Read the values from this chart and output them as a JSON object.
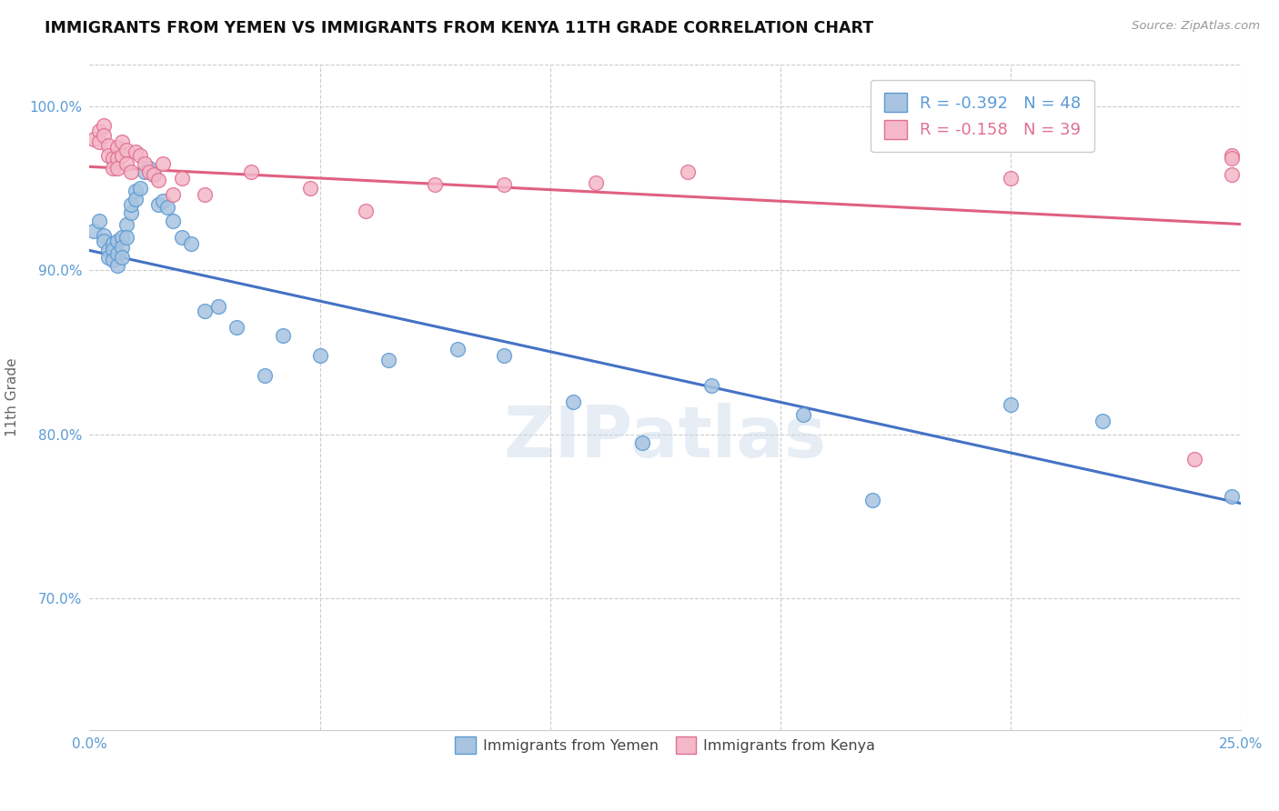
{
  "title": "IMMIGRANTS FROM YEMEN VS IMMIGRANTS FROM KENYA 11TH GRADE CORRELATION CHART",
  "source": "Source: ZipAtlas.com",
  "ylabel": "11th Grade",
  "xlim": [
    0.0,
    0.25
  ],
  "ylim": [
    0.62,
    1.025
  ],
  "yticks": [
    0.7,
    0.8,
    0.9,
    1.0
  ],
  "ytick_labels": [
    "70.0%",
    "80.0%",
    "90.0%",
    "100.0%"
  ],
  "xticks": [
    0.0,
    0.05,
    0.1,
    0.15,
    0.2,
    0.25
  ],
  "xtick_labels_show": [
    "0.0%",
    "",
    "",
    "",
    "",
    "25.0%"
  ],
  "legend_blue_line1": "R = -0.392",
  "legend_blue_line2": "N = 48",
  "legend_pink_line1": "R = -0.158",
  "legend_pink_line2": "N = 39",
  "blue_color": "#a8c4e0",
  "blue_edge_color": "#5b9bd5",
  "pink_color": "#f4b8c8",
  "pink_edge_color": "#e07090",
  "watermark": "ZIPatlas",
  "blue_line_color": "#4472c4",
  "pink_line_color": "#e06080",
  "blue_line_y0": 0.912,
  "blue_line_y1": 0.758,
  "pink_line_y0": 0.963,
  "pink_line_y1": 0.928,
  "blue_x": [
    0.001,
    0.002,
    0.003,
    0.003,
    0.004,
    0.004,
    0.005,
    0.005,
    0.005,
    0.006,
    0.006,
    0.006,
    0.007,
    0.007,
    0.007,
    0.008,
    0.008,
    0.009,
    0.009,
    0.01,
    0.01,
    0.011,
    0.012,
    0.013,
    0.014,
    0.015,
    0.016,
    0.017,
    0.018,
    0.02,
    0.022,
    0.025,
    0.028,
    0.032,
    0.038,
    0.042,
    0.05,
    0.065,
    0.08,
    0.09,
    0.105,
    0.12,
    0.135,
    0.155,
    0.17,
    0.2,
    0.22,
    0.248
  ],
  "blue_y": [
    0.924,
    0.93,
    0.921,
    0.918,
    0.912,
    0.908,
    0.916,
    0.912,
    0.906,
    0.918,
    0.91,
    0.903,
    0.92,
    0.914,
    0.908,
    0.928,
    0.92,
    0.935,
    0.94,
    0.948,
    0.943,
    0.95,
    0.96,
    0.962,
    0.958,
    0.94,
    0.942,
    0.938,
    0.93,
    0.92,
    0.916,
    0.875,
    0.878,
    0.865,
    0.836,
    0.86,
    0.848,
    0.845,
    0.852,
    0.848,
    0.82,
    0.795,
    0.83,
    0.812,
    0.76,
    0.818,
    0.808,
    0.762
  ],
  "pink_x": [
    0.001,
    0.002,
    0.002,
    0.003,
    0.003,
    0.004,
    0.004,
    0.005,
    0.005,
    0.006,
    0.006,
    0.006,
    0.007,
    0.007,
    0.008,
    0.008,
    0.009,
    0.01,
    0.011,
    0.012,
    0.013,
    0.014,
    0.015,
    0.016,
    0.018,
    0.02,
    0.025,
    0.035,
    0.048,
    0.06,
    0.075,
    0.09,
    0.11,
    0.13,
    0.2,
    0.24,
    0.248,
    0.248,
    0.248
  ],
  "pink_y": [
    0.98,
    0.985,
    0.978,
    0.988,
    0.982,
    0.976,
    0.97,
    0.968,
    0.962,
    0.975,
    0.968,
    0.962,
    0.978,
    0.97,
    0.973,
    0.965,
    0.96,
    0.972,
    0.97,
    0.965,
    0.96,
    0.958,
    0.955,
    0.965,
    0.946,
    0.956,
    0.946,
    0.96,
    0.95,
    0.936,
    0.952,
    0.952,
    0.953,
    0.96,
    0.956,
    0.785,
    0.97,
    0.958,
    0.968
  ]
}
